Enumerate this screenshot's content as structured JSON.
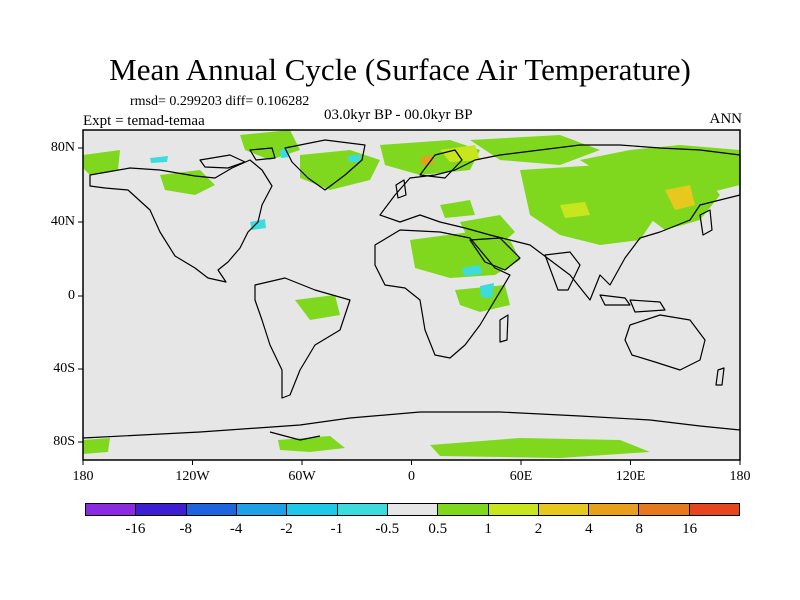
{
  "title": "Mean Annual Cycle (Surface Air Temperature)",
  "stats": "rmsd= 0.299203 diff= 0.106282",
  "experiment": "Expt = temad-temaa",
  "period": "03.0kyr BP - 00.0kyr BP",
  "season": "ANN",
  "map": {
    "background_color": "#e6e6e6",
    "lat_ticks": [
      "80N",
      "40N",
      "0",
      "40S",
      "80S"
    ],
    "lon_ticks": [
      "180",
      "120W",
      "60W",
      "0",
      "60E",
      "120E",
      "180"
    ]
  },
  "colorbar": {
    "colors": [
      "#8a2be2",
      "#3b1fd0",
      "#1e64dc",
      "#1ea0e6",
      "#1ec8e6",
      "#3cdcdc",
      "#e6e6e6",
      "#7fd81e",
      "#c8e61e",
      "#e6c81e",
      "#e6a01e",
      "#e6781e",
      "#e6461e"
    ],
    "labels": [
      "-16",
      "-8",
      "-4",
      "-2",
      "-1",
      "-0.5",
      "0.5",
      "1",
      "2",
      "4",
      "8",
      "16"
    ]
  }
}
